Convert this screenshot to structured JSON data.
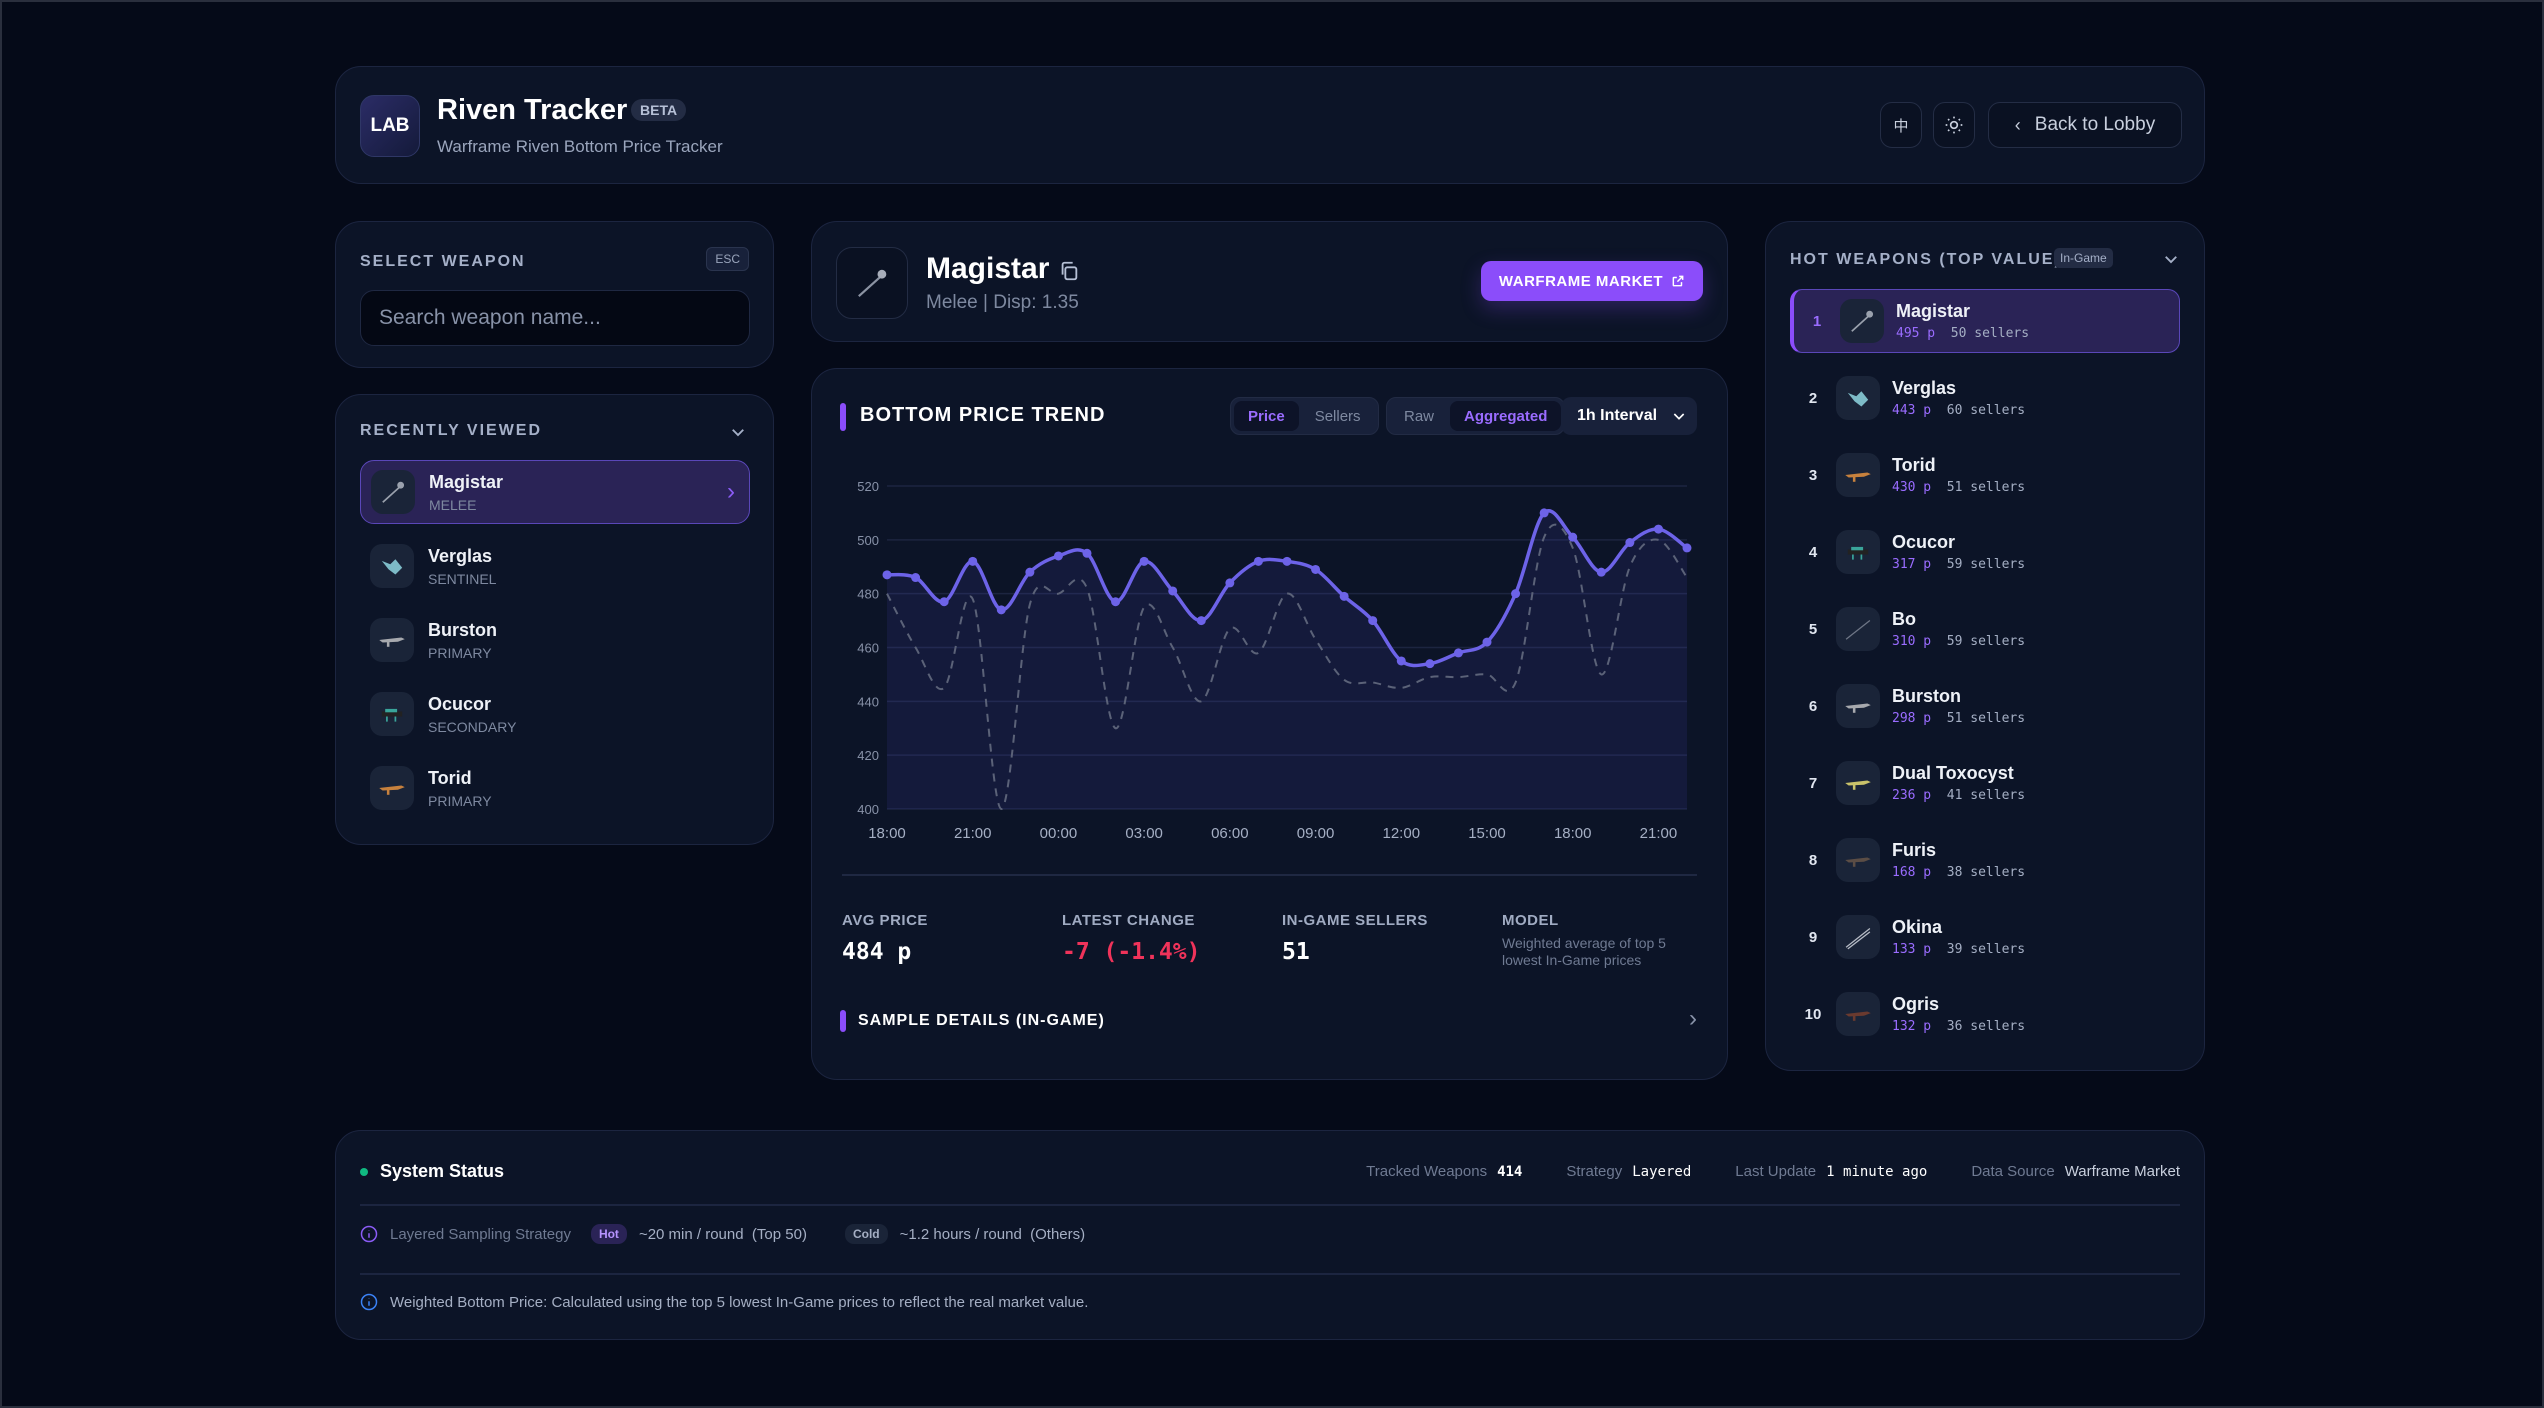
{
  "header": {
    "logo": "LAB",
    "title": "Riven Tracker",
    "badge": "BETA",
    "subtitle": "Warframe Riven Bottom Price Tracker",
    "lang_button": "中",
    "theme_icon": "sun-icon",
    "back_label": "Back to Lobby"
  },
  "select_weapon": {
    "title": "SELECT WEAPON",
    "esc": "ESC",
    "placeholder": "Search weapon name..."
  },
  "recent": {
    "title": "RECENTLY VIEWED",
    "items": [
      {
        "name": "Magistar",
        "category": "MELEE",
        "active": true
      },
      {
        "name": "Verglas",
        "category": "SENTINEL"
      },
      {
        "name": "Burston",
        "category": "PRIMARY"
      },
      {
        "name": "Ocucor",
        "category": "SECONDARY"
      },
      {
        "name": "Torid",
        "category": "PRIMARY"
      }
    ]
  },
  "weapon": {
    "name": "Magistar",
    "meta": "Melee | Disp: 1.35",
    "market_button": "WARFRAME MARKET"
  },
  "trend": {
    "title": "BOTTOM PRICE TREND",
    "metric_tabs": [
      "Price",
      "Sellers"
    ],
    "metric_active": "Price",
    "mode_tabs": [
      "Raw",
      "Aggregated"
    ],
    "mode_active": "Aggregated",
    "interval": "1h Interval"
  },
  "chart_data": {
    "type": "line",
    "title": "BOTTOM PRICE TREND",
    "xlabel": "",
    "ylabel": "",
    "x_ticks": [
      "18:00",
      "21:00",
      "00:00",
      "03:00",
      "06:00",
      "09:00",
      "12:00",
      "15:00",
      "18:00",
      "21:00"
    ],
    "y_ticks": [
      400,
      420,
      440,
      460,
      480,
      500,
      520
    ],
    "ylim": [
      400,
      520
    ],
    "grid": true,
    "x": [
      "18:00",
      "19:00",
      "20:00",
      "21:00",
      "22:00",
      "23:00",
      "00:00",
      "01:00",
      "02:00",
      "03:00",
      "04:00",
      "05:00",
      "06:00",
      "07:00",
      "08:00",
      "09:00",
      "10:00",
      "11:00",
      "12:00",
      "13:00",
      "14:00",
      "15:00",
      "16:00",
      "17:00",
      "18:00",
      "19:00",
      "20:00",
      "21:00",
      "22:00"
    ],
    "series": [
      {
        "name": "Aggregated",
        "color": "#6d63e8",
        "style": "solid",
        "values": [
          487,
          486,
          477,
          492,
          474,
          488,
          494,
          495,
          477,
          492,
          481,
          470,
          484,
          492,
          492,
          489,
          479,
          470,
          455,
          454,
          458,
          462,
          480,
          510,
          501,
          488,
          499,
          504,
          497
        ]
      },
      {
        "name": "Raw",
        "color": "#5b6278",
        "style": "dashed",
        "values": [
          480,
          460,
          445,
          478,
          400,
          476,
          480,
          482,
          430,
          475,
          460,
          440,
          467,
          458,
          480,
          463,
          448,
          447,
          445,
          449,
          449,
          450,
          447,
          501,
          497,
          450,
          490,
          500,
          486
        ]
      }
    ]
  },
  "stats": {
    "avg_label": "AVG PRICE",
    "avg_value": "484 p",
    "change_label": "LATEST CHANGE",
    "change_value": "-7 (-1.4%)",
    "sellers_label": "IN-GAME SELLERS",
    "sellers_value": "51",
    "model_label": "MODEL",
    "model_value": "Weighted average of top 5 lowest In-Game prices",
    "details": "SAMPLE DETAILS (IN-GAME)"
  },
  "colors": {
    "accent": "#8b4dfa",
    "negative": "#f0335a",
    "status_ok": "#10b981"
  },
  "hot": {
    "title": "HOT WEAPONS (TOP VALUE)",
    "badge": "In-Game",
    "items": [
      {
        "rank": "1",
        "name": "Magistar",
        "price": "495 p",
        "sellers": "50 sellers",
        "active": true
      },
      {
        "rank": "2",
        "name": "Verglas",
        "price": "443 p",
        "sellers": "60 sellers"
      },
      {
        "rank": "3",
        "name": "Torid",
        "price": "430 p",
        "sellers": "51 sellers"
      },
      {
        "rank": "4",
        "name": "Ocucor",
        "price": "317 p",
        "sellers": "59 sellers"
      },
      {
        "rank": "5",
        "name": "Bo",
        "price": "310 p",
        "sellers": "59 sellers"
      },
      {
        "rank": "6",
        "name": "Burston",
        "price": "298 p",
        "sellers": "51 sellers"
      },
      {
        "rank": "7",
        "name": "Dual Toxocyst",
        "price": "236 p",
        "sellers": "41 sellers"
      },
      {
        "rank": "8",
        "name": "Furis",
        "price": "168 p",
        "sellers": "38 sellers"
      },
      {
        "rank": "9",
        "name": "Okina",
        "price": "133 p",
        "sellers": "39 sellers"
      },
      {
        "rank": "10",
        "name": "Ogris",
        "price": "132 p",
        "sellers": "36 sellers"
      }
    ]
  },
  "footer": {
    "title": "System Status",
    "tracked_label": "Tracked Weapons",
    "tracked_value": "414",
    "strategy_label": "Strategy",
    "strategy_value": "Layered",
    "update_label": "Last Update",
    "update_value": "1 minute ago",
    "source_label": "Data Source",
    "source_value": "Warframe Market",
    "sampling_label": "Layered Sampling Strategy",
    "hot_badge": "Hot",
    "hot_text": "~20 min / round  (Top 50)",
    "cold_badge": "Cold",
    "cold_text": "~1.2 hours / round  (Others)",
    "note": "Weighted Bottom Price: Calculated using the top 5 lowest In-Game prices to reflect the real market value."
  }
}
